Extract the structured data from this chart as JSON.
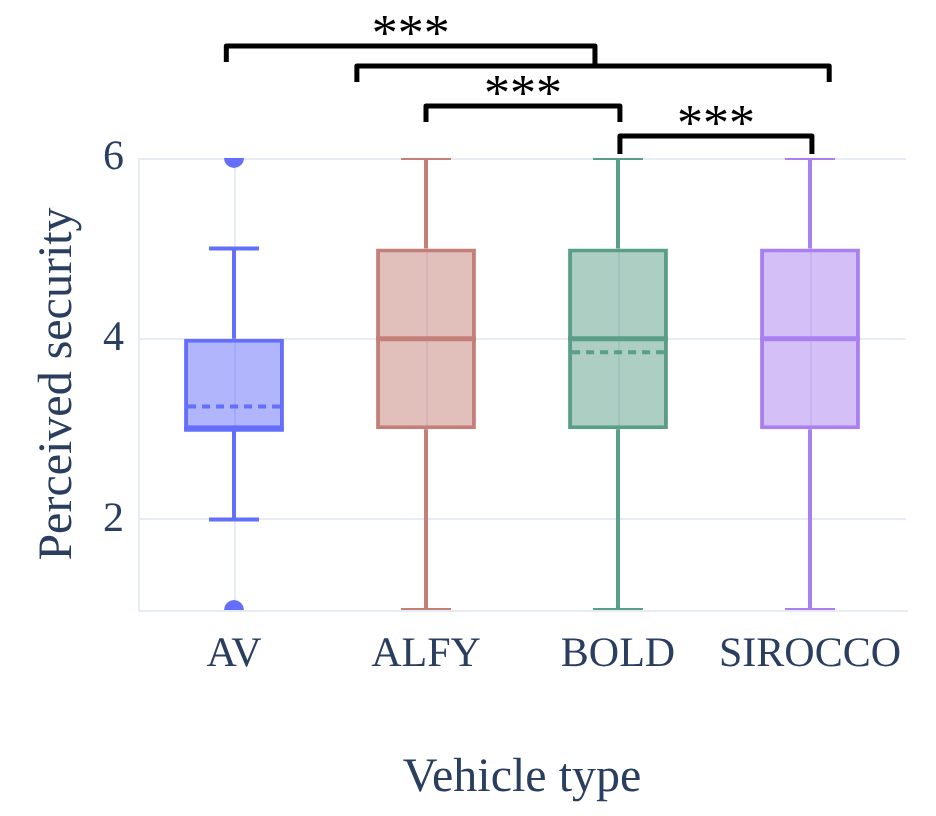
{
  "chart_data": {
    "type": "box",
    "xlabel": "Vehicle type",
    "ylabel": "Perceived security",
    "categories": [
      "AV",
      "ALFY",
      "BOLD",
      "SIROCCO"
    ],
    "colors": [
      "#636efa",
      "#c48078",
      "#5a9e88",
      "#aa80f0"
    ],
    "boxes": [
      {
        "low": 2,
        "q1": 3,
        "median": 3,
        "q3": 4,
        "high": 5,
        "mean": 3.25,
        "outliers": [
          1,
          6
        ]
      },
      {
        "low": 1,
        "q1": 3,
        "median": 4,
        "q3": 5,
        "high": 6
      },
      {
        "low": 1,
        "q1": 3,
        "median": 4,
        "q3": 5,
        "high": 6,
        "mean": 3.85
      },
      {
        "low": 1,
        "q1": 3,
        "median": 4,
        "q3": 5,
        "high": 6
      }
    ],
    "ylim": [
      1,
      6
    ],
    "yticks": [
      2,
      4,
      6
    ],
    "grid": true,
    "annotations": [
      "***",
      "***",
      "***"
    ]
  }
}
